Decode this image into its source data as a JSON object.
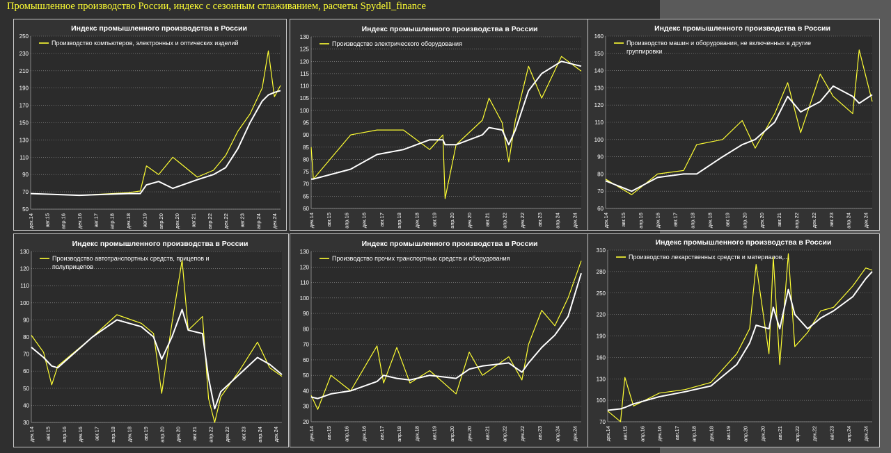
{
  "page_title": "Промышленное производство России, индекс с сезонным сглаживанием, расчеты Spydell_finance",
  "colors": {
    "raw_line": "#ffff33",
    "smooth_line": "#ffffff",
    "plot_bg": "#2b2b2b",
    "outer_bg": "#333333",
    "grid": "#9a9a9a",
    "text": "#ffffff"
  },
  "chart_data": [
    {
      "type": "line",
      "title": "Индекс промышленного производства в России",
      "ylim": [
        50,
        250
      ],
      "yticks": [
        50,
        70,
        90,
        110,
        130,
        150,
        170,
        190,
        210,
        230,
        250
      ],
      "xticks": [
        "дек.14",
        "авг.15",
        "апр.16",
        "дек.16",
        "авг.17",
        "апр.18",
        "дек.18",
        "авг.19",
        "апр.20",
        "дек.20",
        "авг.21",
        "апр.22",
        "дек.22",
        "авг.23",
        "апр.24",
        "дек.24"
      ],
      "legend_lines": [
        "Производство компьютеров, электронных и оптических изделий"
      ],
      "x_dates": [
        "2014-12",
        "2016-12",
        "2018-12",
        "2019-06",
        "2019-09",
        "2020-03",
        "2020-10",
        "2021-10",
        "2022-06",
        "2022-12",
        "2023-06",
        "2023-12",
        "2024-06",
        "2024-09",
        "2024-12",
        "2025-03"
      ],
      "series": [
        {
          "values": [
            68,
            66,
            69,
            71,
            100,
            90,
            110,
            87,
            95,
            112,
            140,
            160,
            190,
            233,
            180,
            193
          ]
        },
        {
          "values": [
            68,
            66,
            68,
            68,
            78,
            82,
            74,
            84,
            90,
            98,
            120,
            150,
            175,
            182,
            185,
            187
          ]
        }
      ]
    },
    {
      "type": "line",
      "title": "Индекс промышленного производства в России",
      "ylim": [
        60,
        130
      ],
      "yticks": [
        60,
        65,
        70,
        75,
        80,
        85,
        90,
        95,
        100,
        105,
        110,
        115,
        120,
        125,
        130
      ],
      "xticks": [
        "дек.14",
        "авг.15",
        "апр.16",
        "дек.16",
        "авг.17",
        "апр.18",
        "дек.18",
        "авг.19",
        "апр.20",
        "дек.20",
        "авг.21",
        "апр.22",
        "дек.22",
        "авг.23",
        "апр.24",
        "дек.24"
      ],
      "legend_lines": [
        "Производство электрического оборудования"
      ],
      "x_dates": [
        "2014-12",
        "2015-01",
        "2016-06",
        "2017-06",
        "2018-06",
        "2019-06",
        "2019-12",
        "2020-01",
        "2020-06",
        "2021-06",
        "2021-09",
        "2022-03",
        "2022-06",
        "2022-09",
        "2023-03",
        "2023-09",
        "2024-06",
        "2025-03"
      ],
      "series": [
        {
          "values": [
            85,
            72,
            90,
            92,
            92,
            84,
            90,
            64,
            86,
            96,
            105,
            95,
            79,
            96,
            118,
            105,
            122,
            116
          ]
        },
        {
          "values": [
            72,
            72,
            76,
            82,
            84,
            88,
            88,
            86,
            86,
            90,
            93,
            92,
            86,
            92,
            108,
            115,
            120,
            118
          ]
        }
      ]
    },
    {
      "type": "line",
      "title": "Индекс промышленного производства в России",
      "ylim": [
        60,
        160
      ],
      "yticks": [
        60,
        70,
        80,
        90,
        100,
        110,
        120,
        130,
        140,
        150,
        160
      ],
      "xticks": [
        "дек.14",
        "авг.15",
        "апр.16",
        "дек.16",
        "авг.17",
        "апр.18",
        "дек.18",
        "авг.19",
        "апр.20",
        "дек.20",
        "авг.21",
        "апр.22",
        "дек.22",
        "авг.23",
        "апр.24",
        "дек.24"
      ],
      "legend_lines": [
        "Производство машин и оборудования, не включенных в другие",
        "группировки"
      ],
      "x_dates": [
        "2014-12",
        "2015-12",
        "2016-12",
        "2017-12",
        "2018-06",
        "2019-06",
        "2020-03",
        "2020-09",
        "2021-06",
        "2021-12",
        "2022-06",
        "2023-03",
        "2023-09",
        "2024-06",
        "2024-09",
        "2025-03"
      ],
      "series": [
        {
          "values": [
            77,
            68,
            80,
            82,
            97,
            100,
            111,
            95,
            115,
            133,
            104,
            138,
            125,
            115,
            152,
            122
          ]
        },
        {
          "values": [
            76,
            70,
            78,
            80,
            80,
            90,
            97,
            100,
            110,
            125,
            116,
            122,
            131,
            125,
            121,
            126
          ]
        }
      ]
    },
    {
      "type": "line",
      "title": "Индекс промышленного производства в России",
      "ylim": [
        30,
        130
      ],
      "yticks": [
        30,
        40,
        50,
        60,
        70,
        80,
        90,
        100,
        110,
        120,
        130
      ],
      "xticks": [
        "дек.14",
        "авг.15",
        "апр.16",
        "дек.16",
        "авг.17",
        "апр.18",
        "дек.18",
        "авг.19",
        "апр.20",
        "дек.20",
        "авг.21",
        "апр.22",
        "дек.22",
        "авг.23",
        "апр.24",
        "дек.24"
      ],
      "legend_lines": [
        "Производство автотранспортных средств, прицепов и",
        "полуприцепов"
      ],
      "x_dates": [
        "2014-12",
        "2015-06",
        "2015-10",
        "2016-01",
        "2017-06",
        "2018-06",
        "2019-06",
        "2019-12",
        "2020-04",
        "2020-09",
        "2021-02",
        "2021-05",
        "2021-12",
        "2022-03",
        "2022-06",
        "2022-09",
        "2023-06",
        "2024-03",
        "2024-09",
        "2025-03"
      ],
      "series": [
        {
          "values": [
            81,
            71,
            52,
            63,
            80,
            93,
            88,
            82,
            47,
            88,
            125,
            84,
            92,
            44,
            30,
            45,
            60,
            77,
            62,
            57
          ]
        },
        {
          "values": [
            74,
            68,
            63,
            62,
            80,
            90,
            86,
            80,
            67,
            80,
            96,
            84,
            82,
            56,
            38,
            48,
            58,
            68,
            64,
            58
          ]
        }
      ]
    },
    {
      "type": "line",
      "title": "Индекс промышленного производства в России",
      "ylim": [
        20,
        130
      ],
      "yticks": [
        20,
        30,
        40,
        50,
        60,
        70,
        80,
        90,
        100,
        110,
        120,
        130
      ],
      "xticks": [
        "дек.14",
        "авг.15",
        "апр.16",
        "дек.16",
        "авг.17",
        "апр.18",
        "дек.18",
        "авг.19",
        "апр.20",
        "дек.20",
        "авг.21",
        "апр.22",
        "дек.22",
        "авг.23",
        "апр.24",
        "дек.24"
      ],
      "legend_lines": [
        "Производство прочих транспортных средств и оборудования"
      ],
      "x_dates": [
        "2014-12",
        "2015-03",
        "2015-09",
        "2016-06",
        "2017-06",
        "2017-09",
        "2018-03",
        "2018-09",
        "2019-06",
        "2020-06",
        "2020-12",
        "2021-06",
        "2022-06",
        "2022-12",
        "2023-03",
        "2023-09",
        "2024-03",
        "2024-09",
        "2025-03"
      ],
      "series": [
        {
          "values": [
            37,
            28,
            50,
            40,
            69,
            45,
            68,
            45,
            53,
            38,
            65,
            50,
            62,
            47,
            70,
            92,
            82,
            100,
            124
          ]
        },
        {
          "values": [
            36,
            35,
            38,
            40,
            46,
            50,
            48,
            47,
            50,
            48,
            54,
            56,
            58,
            52,
            58,
            68,
            76,
            88,
            116
          ]
        }
      ]
    },
    {
      "type": "line",
      "title": "Индекс промышленного производства в России",
      "ylim": [
        70,
        310
      ],
      "yticks": [
        70,
        100,
        130,
        160,
        190,
        220,
        250,
        280,
        310
      ],
      "xticks": [
        "дек.14",
        "авг.15",
        "апр.16",
        "дек.16",
        "авг.17",
        "апр.18",
        "дек.18",
        "авг.19",
        "апр.20",
        "дек.20",
        "авг.21",
        "апр.22",
        "дек.22",
        "авг.23",
        "апр.24",
        "дек.24"
      ],
      "legend_lines": [
        "Производство лекарственных средств и материалов,..."
      ],
      "x_dates": [
        "2014-12",
        "2015-06",
        "2015-08",
        "2015-12",
        "2016-12",
        "2017-12",
        "2018-12",
        "2019-12",
        "2020-06",
        "2020-09",
        "2021-03",
        "2021-05",
        "2021-08",
        "2021-12",
        "2022-03",
        "2022-09",
        "2023-03",
        "2023-09",
        "2024-06",
        "2024-12",
        "2025-03"
      ],
      "series": [
        {
          "values": [
            85,
            70,
            132,
            92,
            110,
            115,
            125,
            165,
            200,
            290,
            165,
            300,
            150,
            305,
            175,
            195,
            225,
            230,
            260,
            285,
            282
          ]
        },
        {
          "values": [
            86,
            88,
            90,
            95,
            105,
            112,
            120,
            150,
            180,
            205,
            200,
            230,
            200,
            255,
            220,
            200,
            215,
            225,
            245,
            270,
            280
          ]
        }
      ]
    }
  ]
}
